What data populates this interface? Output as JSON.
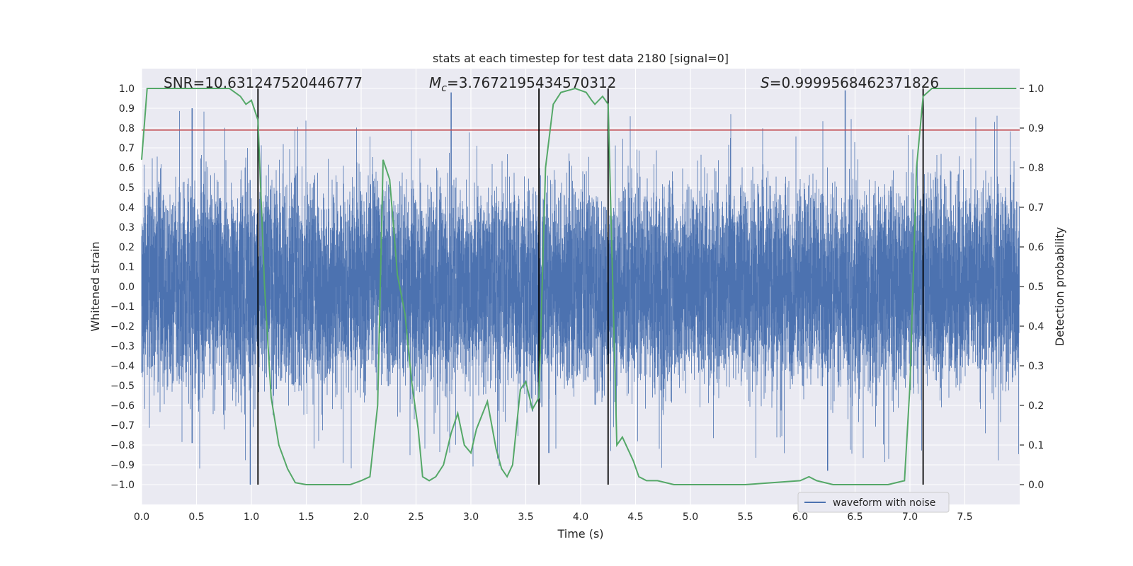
{
  "chart_data": {
    "type": "line",
    "title": "stats at each timestep for test data 2180 [signal=0]",
    "xlabel": "Time (s)",
    "ylabel_left": "Whitened strain",
    "ylabel_right": "Detection probability",
    "xlim": [
      0.0,
      8.0
    ],
    "ylim_left": [
      -1.1,
      1.1
    ],
    "ylim_right": [
      -0.05,
      1.05
    ],
    "x_ticks": [
      "0.0",
      "0.5",
      "1.0",
      "1.5",
      "2.0",
      "2.5",
      "3.0",
      "3.5",
      "4.0",
      "4.5",
      "5.0",
      "5.5",
      "6.0",
      "6.5",
      "7.0",
      "7.5"
    ],
    "y_left_ticks": [
      "1.0",
      "0.9",
      "0.8",
      "0.7",
      "0.6",
      "0.5",
      "0.4",
      "0.3",
      "0.2",
      "0.1",
      "0.0",
      "−0.1",
      "−0.2",
      "−0.3",
      "−0.4",
      "−0.5",
      "−0.6",
      "−0.7",
      "−0.8",
      "−0.9",
      "−1.0"
    ],
    "y_right_ticks": [
      "1.0",
      "0.9",
      "0.8",
      "0.7",
      "0.6",
      "0.5",
      "0.4",
      "0.3",
      "0.2",
      "0.1",
      "0.0"
    ],
    "grid": true,
    "annotations": {
      "snr": "SNR=10.631247520446777",
      "mc_symbol": "M",
      "mc_subscript": "c",
      "mc_value": "=3.7672195434570312",
      "s_symbol": "S",
      "s_value": "=0.9999568462371826"
    },
    "threshold_left": 0.79,
    "vertical_lines_x": [
      1.06,
      3.62,
      4.25,
      7.12
    ],
    "vertical_lines_ylim": [
      -1.0,
      1.0
    ],
    "waveform": {
      "name": "waveform with noise",
      "typical_amplitude": 0.4,
      "spikes": [
        {
          "x": 0.46,
          "y": 0.9
        },
        {
          "x": 0.99,
          "y": -1.0
        },
        {
          "x": 2.82,
          "y": 0.98
        },
        {
          "x": 6.41,
          "y": 0.99
        },
        {
          "x": 6.25,
          "y": -0.93
        },
        {
          "x": 3.71,
          "y": -0.84
        },
        {
          "x": 0.46,
          "y": -0.79
        }
      ]
    },
    "probability": {
      "name": "detection probability",
      "x": [
        0.0,
        0.05,
        0.1,
        0.2,
        0.4,
        0.6,
        0.8,
        0.9,
        0.95,
        1.0,
        1.06,
        1.12,
        1.18,
        1.25,
        1.33,
        1.4,
        1.5,
        1.7,
        1.9,
        2.0,
        2.08,
        2.15,
        2.2,
        2.26,
        2.33,
        2.4,
        2.46,
        2.52,
        2.56,
        2.62,
        2.68,
        2.75,
        2.82,
        2.88,
        2.94,
        3.0,
        3.05,
        3.15,
        3.23,
        3.28,
        3.33,
        3.38,
        3.45,
        3.5,
        3.56,
        3.62,
        3.68,
        3.75,
        3.82,
        3.95,
        4.05,
        4.1,
        4.13,
        4.2,
        4.25,
        4.33,
        4.38,
        4.43,
        4.48,
        4.53,
        4.6,
        4.7,
        4.85,
        5.0,
        5.5,
        6.0,
        6.08,
        6.15,
        6.3,
        6.5,
        6.8,
        6.95,
        7.0,
        7.06,
        7.12,
        7.2,
        7.3,
        7.5,
        7.97
      ],
      "y": [
        0.82,
        1.0,
        1.0,
        1.0,
        1.0,
        1.0,
        1.0,
        0.98,
        0.96,
        0.97,
        0.92,
        0.5,
        0.22,
        0.1,
        0.04,
        0.005,
        0.0,
        0.0,
        0.0,
        0.01,
        0.02,
        0.2,
        0.82,
        0.77,
        0.53,
        0.43,
        0.26,
        0.14,
        0.02,
        0.01,
        0.02,
        0.05,
        0.13,
        0.18,
        0.1,
        0.08,
        0.14,
        0.21,
        0.09,
        0.04,
        0.02,
        0.05,
        0.24,
        0.26,
        0.19,
        0.22,
        0.8,
        0.96,
        0.99,
        1.0,
        0.99,
        0.97,
        0.96,
        0.98,
        0.96,
        0.1,
        0.12,
        0.09,
        0.06,
        0.02,
        0.01,
        0.01,
        0.0,
        0.0,
        0.0,
        0.01,
        0.02,
        0.01,
        0.0,
        0.0,
        0.0,
        0.01,
        0.25,
        0.8,
        0.98,
        1.0,
        1.0,
        1.0,
        1.0
      ]
    },
    "legend": {
      "entries": [
        "waveform with noise"
      ],
      "location": "lower-right"
    }
  },
  "colors": {
    "plot_bg": "#eaeaf2",
    "grid": "#ffffff",
    "waveform": "#4c72b0",
    "probability": "#55a868",
    "threshold": "#c44e52",
    "vertical_line": "#000000",
    "text": "#262626"
  }
}
